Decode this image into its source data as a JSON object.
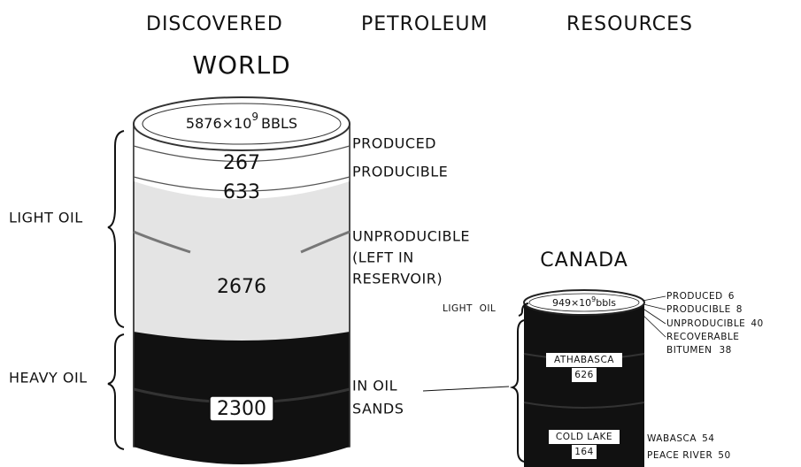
{
  "header": {
    "title_words": [
      "DISCOVERED",
      "PETROLEUM",
      "RESOURCES"
    ]
  },
  "world": {
    "heading": "WORLD",
    "total": {
      "amount": "5876×10",
      "exponent": "9",
      "unit": "BBLS"
    },
    "groups": [
      "LIGHT OIL",
      "HEAVY OIL"
    ],
    "segments": [
      {
        "lines": [
          "PRODUCED"
        ],
        "value": 267
      },
      {
        "lines": [
          "PRODUCIBLE"
        ],
        "value": 633
      },
      {
        "lines": [
          "UNPRODUCIBLE",
          "(LEFT IN",
          "RESERVOIR)"
        ],
        "value": 2676
      },
      {
        "lines": [
          "IN OIL",
          "SANDS"
        ],
        "value": 2300
      }
    ]
  },
  "canada": {
    "heading": "CANADA",
    "total": {
      "amount": "949×10",
      "exponent": "9",
      "unit": "bbls"
    },
    "light_oil_label": "LIGHT  OIL",
    "light_oil_items": [
      {
        "lines": [
          "PRODUCED"
        ],
        "value": 6
      },
      {
        "lines": [
          "PRODUCIBLE"
        ],
        "value": 8
      },
      {
        "lines": [
          "UNPRODUCIBLE"
        ],
        "value": 40
      },
      {
        "lines": [
          "RECOVERABLE",
          "BITUMEN"
        ],
        "value": 38
      }
    ],
    "oil_sands": [
      {
        "name": "ATHABASCA",
        "value": 626
      },
      {
        "name": "COLD LAKE",
        "value": 164
      },
      {
        "name": "WABASCA",
        "value": 54
      },
      {
        "name": "PEACE RIVER",
        "value": 50
      }
    ]
  }
}
